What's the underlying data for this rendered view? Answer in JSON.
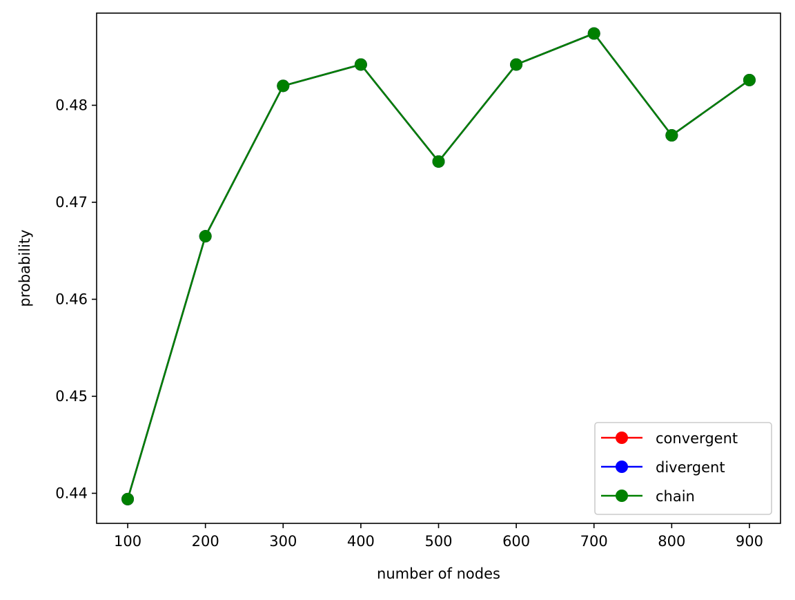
{
  "chart_data": {
    "type": "line",
    "title": "",
    "xlabel": "number of nodes",
    "ylabel": "probability",
    "x": [
      100,
      200,
      300,
      400,
      500,
      600,
      700,
      800,
      900
    ],
    "xlim": [
      60,
      940
    ],
    "ylim": [
      0.4369,
      0.4895
    ],
    "xticks": [
      100,
      200,
      300,
      400,
      500,
      600,
      700,
      800,
      900
    ],
    "yticks": [
      0.44,
      0.45,
      0.46,
      0.47,
      0.48
    ],
    "ytick_labels": [
      "0.44",
      "0.45",
      "0.46",
      "0.47",
      "0.48"
    ],
    "grid": false,
    "legend_position": "lower right",
    "marker": "circle",
    "series": [
      {
        "name": "convergent",
        "color": "#ff0000",
        "values": [
          0.4394,
          0.4665,
          0.482,
          0.4842,
          0.4742,
          0.4842,
          0.4874,
          0.4769,
          0.4826
        ]
      },
      {
        "name": "divergent",
        "color": "#0000ff",
        "values": [
          0.4394,
          0.4665,
          0.482,
          0.4842,
          0.4742,
          0.4842,
          0.4874,
          0.4769,
          0.4826
        ]
      },
      {
        "name": "chain",
        "color": "#008000",
        "values": [
          0.4394,
          0.4665,
          0.482,
          0.4842,
          0.4742,
          0.4842,
          0.4874,
          0.4769,
          0.4826
        ]
      }
    ]
  }
}
